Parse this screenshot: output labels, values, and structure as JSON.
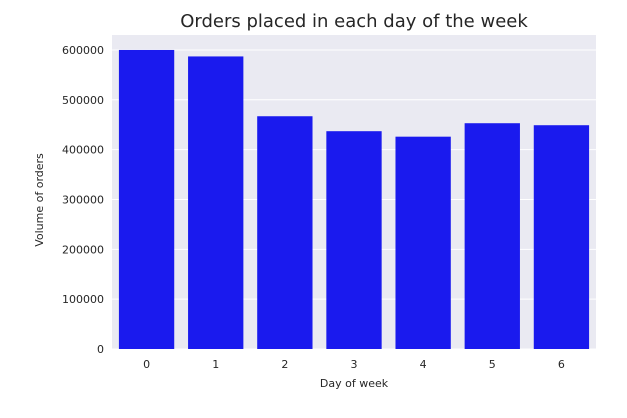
{
  "chart_data": {
    "type": "bar",
    "title": "Orders placed in each day of the week",
    "xlabel": "Day of week",
    "ylabel": "Volume of orders",
    "categories": [
      "0",
      "1",
      "2",
      "3",
      "4",
      "5",
      "6"
    ],
    "values": [
      600000,
      587000,
      467000,
      437000,
      426000,
      453000,
      449000
    ],
    "ylim": [
      0,
      630000
    ],
    "yticks": [
      0,
      100000,
      200000,
      300000,
      400000,
      500000,
      600000
    ],
    "ytick_labels": [
      "0",
      "100000",
      "200000",
      "300000",
      "400000",
      "500000",
      "600000"
    ],
    "bar_color": "#1a1aee",
    "plot_background": "#eaeaf2",
    "grid_color": "#ffffff",
    "grid": true
  }
}
